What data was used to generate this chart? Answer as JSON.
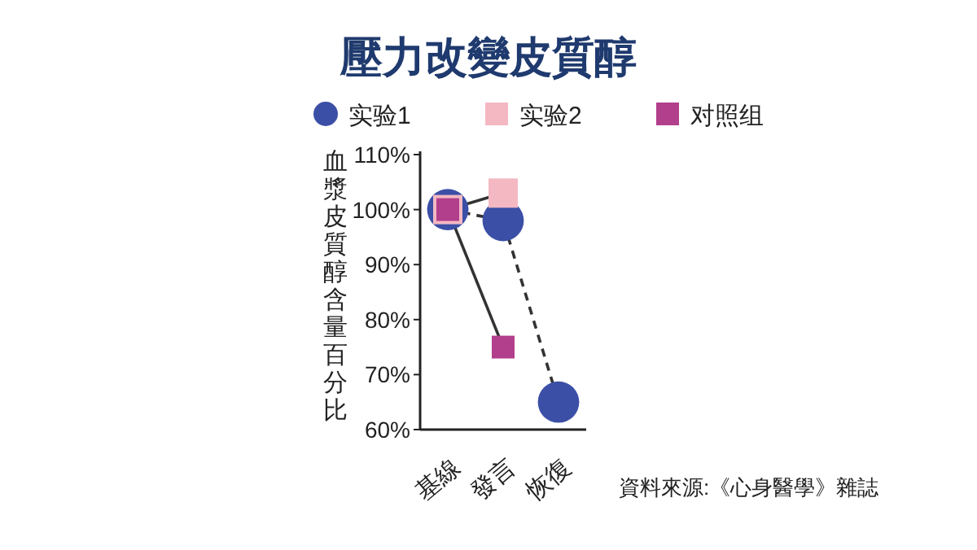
{
  "chart_data": {
    "type": "line",
    "title": "壓力改變皮質醇",
    "ylabel": "血漿皮質醇含量百分比",
    "categories": [
      "基線",
      "發言",
      "恢復"
    ],
    "series": [
      {
        "name": "实验1",
        "color": "#3b4fa6",
        "values": [
          100,
          98,
          65
        ],
        "marker": "circle",
        "line_style": "dashed"
      },
      {
        "name": "实验2",
        "color": "#f4b8c3",
        "values": [
          100,
          103,
          null
        ],
        "marker": "square",
        "line_style": "solid"
      },
      {
        "name": "对照组",
        "color": "#b23f8c",
        "values": [
          100,
          75,
          null
        ],
        "marker": "square",
        "line_style": "solid"
      }
    ],
    "ylim": [
      60,
      110
    ],
    "yticks": [
      {
        "value": 60,
        "label": "60%"
      },
      {
        "value": 70,
        "label": "70%"
      },
      {
        "value": 80,
        "label": "80%"
      },
      {
        "value": 90,
        "label": "90%"
      },
      {
        "value": 100,
        "label": "100%"
      },
      {
        "value": 110,
        "label": "110%"
      }
    ],
    "grid": false,
    "legend": "top",
    "annotations": [
      "資料來源:《心身醫學》雜誌"
    ]
  }
}
